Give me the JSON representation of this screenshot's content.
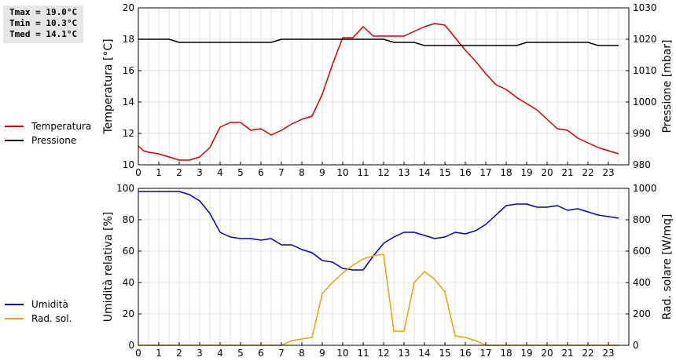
{
  "stats": {
    "tmax": "Tmax = 19.0°C",
    "tmin": "Tmin = 10.3°C",
    "tmed": "Tmed = 14.1°C"
  },
  "legend_top": [
    {
      "label": "Temperatura",
      "color": "#d40000"
    },
    {
      "label": "Pressione",
      "color": "#000000"
    }
  ],
  "legend_bottom": [
    {
      "label": "Umidità",
      "color": "#0000b4"
    },
    {
      "label": "Rad. sol.",
      "color": "#f0a000"
    }
  ],
  "chart_data": [
    {
      "type": "line",
      "x_ticks": [
        "0",
        "1",
        "2",
        "3",
        "4",
        "5",
        "6",
        "7",
        "8",
        "9",
        "10",
        "11",
        "12",
        "13",
        "14",
        "15",
        "16",
        "17",
        "18",
        "19",
        "20",
        "21",
        "22",
        "23"
      ],
      "xlim": [
        0,
        24
      ],
      "ylabel_left": "Temperatura [°C]",
      "ylabel_right": "Pressione [mbar]",
      "ylim_left": [
        10,
        20
      ],
      "ylim_right": [
        980,
        1030
      ],
      "yticks_left": [
        10,
        12,
        14,
        16,
        18,
        20
      ],
      "yticks_right": [
        980,
        990,
        1000,
        1010,
        1020,
        1030
      ],
      "grid": true,
      "series": [
        {
          "name": "Temperatura",
          "axis": "left",
          "color": "#d40000",
          "x": [
            0,
            0.25,
            0.5,
            1,
            1.5,
            2,
            2.5,
            3,
            3.5,
            4,
            4.5,
            5,
            5.5,
            6,
            6.5,
            7,
            7.5,
            8,
            8.5,
            9,
            9.5,
            10,
            10.5,
            11,
            11.5,
            12,
            12.5,
            13,
            13.5,
            14,
            14.5,
            15,
            15.5,
            16,
            16.5,
            17,
            17.5,
            18,
            18.5,
            19,
            19.5,
            20,
            20.5,
            21,
            21.5,
            22,
            22.5,
            23,
            23.5
          ],
          "y": [
            11.2,
            10.9,
            10.8,
            10.7,
            10.5,
            10.3,
            10.3,
            10.5,
            11.1,
            12.4,
            12.7,
            12.7,
            12.2,
            12.3,
            11.9,
            12.2,
            12.6,
            12.9,
            13.1,
            14.5,
            16.4,
            18.1,
            18.1,
            18.8,
            18.2,
            18.2,
            18.2,
            18.2,
            18.5,
            18.8,
            19.0,
            18.9,
            18.1,
            17.3,
            16.6,
            15.8,
            15.1,
            14.8,
            14.3,
            13.9,
            13.5,
            12.9,
            12.3,
            12.2,
            11.7,
            11.4,
            11.1,
            10.9,
            10.7
          ]
        },
        {
          "name": "Pressione",
          "axis": "right",
          "color": "#000000",
          "x": [
            0,
            1,
            1.5,
            2,
            2.5,
            3,
            4,
            5,
            6,
            6.5,
            7,
            8,
            9,
            10,
            11,
            12,
            12.5,
            13,
            13.5,
            14,
            15,
            16,
            17,
            18,
            18.5,
            19,
            20,
            21,
            22,
            22.5,
            23,
            23.5
          ],
          "y": [
            1020,
            1020,
            1020,
            1019,
            1019,
            1019,
            1019,
            1019,
            1019,
            1019,
            1020,
            1020,
            1020,
            1020,
            1020,
            1020,
            1019,
            1019,
            1019,
            1018,
            1018,
            1018,
            1018,
            1018,
            1018,
            1019,
            1019,
            1019,
            1019,
            1018,
            1018,
            1018
          ]
        }
      ]
    },
    {
      "type": "line",
      "x_ticks": [
        "0",
        "1",
        "2",
        "3",
        "4",
        "5",
        "6",
        "7",
        "8",
        "9",
        "10",
        "11",
        "12",
        "13",
        "14",
        "15",
        "16",
        "17",
        "18",
        "19",
        "20",
        "21",
        "22",
        "23"
      ],
      "xlim": [
        0,
        24
      ],
      "ylabel_left": "Umidità relativa [%]",
      "ylabel_right": "Rad. solare [W/mq]",
      "ylim_left": [
        0,
        100
      ],
      "ylim_right": [
        0,
        1000
      ],
      "yticks_left": [
        0,
        20,
        40,
        60,
        80,
        100
      ],
      "yticks_right": [
        0,
        200,
        400,
        600,
        800,
        1000
      ],
      "grid": true,
      "series": [
        {
          "name": "Umidità",
          "axis": "left",
          "color": "#0000b4",
          "x": [
            0,
            1,
            2,
            2.5,
            3,
            3.5,
            4,
            4.5,
            5,
            5.5,
            6,
            6.5,
            7,
            7.5,
            8,
            8.5,
            9,
            9.5,
            10,
            10.5,
            11,
            11.5,
            12,
            12.5,
            13,
            13.5,
            14,
            14.5,
            15,
            15.5,
            16,
            16.5,
            17,
            17.5,
            18,
            18.5,
            19,
            19.5,
            20,
            20.5,
            21,
            21.5,
            22,
            22.5,
            23,
            23.5
          ],
          "y": [
            98,
            98,
            98,
            96,
            92,
            84,
            72,
            69,
            68,
            68,
            67,
            68,
            64,
            64,
            61,
            59,
            54,
            53,
            49,
            48,
            48,
            57,
            65,
            69,
            72,
            72,
            70,
            68,
            69,
            72,
            71,
            73,
            77,
            83,
            89,
            90,
            90,
            88,
            88,
            89,
            86,
            87,
            85,
            83,
            82,
            81
          ]
        },
        {
          "name": "Rad. sol.",
          "axis": "right",
          "color": "#f0a000",
          "x": [
            0,
            1,
            2,
            3,
            4,
            5,
            6,
            7,
            7.5,
            8,
            8.5,
            9,
            9.5,
            10,
            10.5,
            11,
            11.5,
            12,
            12.5,
            13,
            13.5,
            14,
            14.5,
            15,
            15.5,
            16,
            16.5,
            17,
            18,
            19,
            20,
            21,
            22,
            23,
            23.5
          ],
          "y": [
            0,
            0,
            0,
            0,
            0,
            0,
            0,
            0,
            30,
            40,
            50,
            330,
            400,
            460,
            510,
            550,
            570,
            580,
            90,
            90,
            400,
            470,
            420,
            340,
            60,
            50,
            30,
            0,
            0,
            0,
            0,
            0,
            0,
            0,
            0
          ]
        }
      ]
    }
  ]
}
